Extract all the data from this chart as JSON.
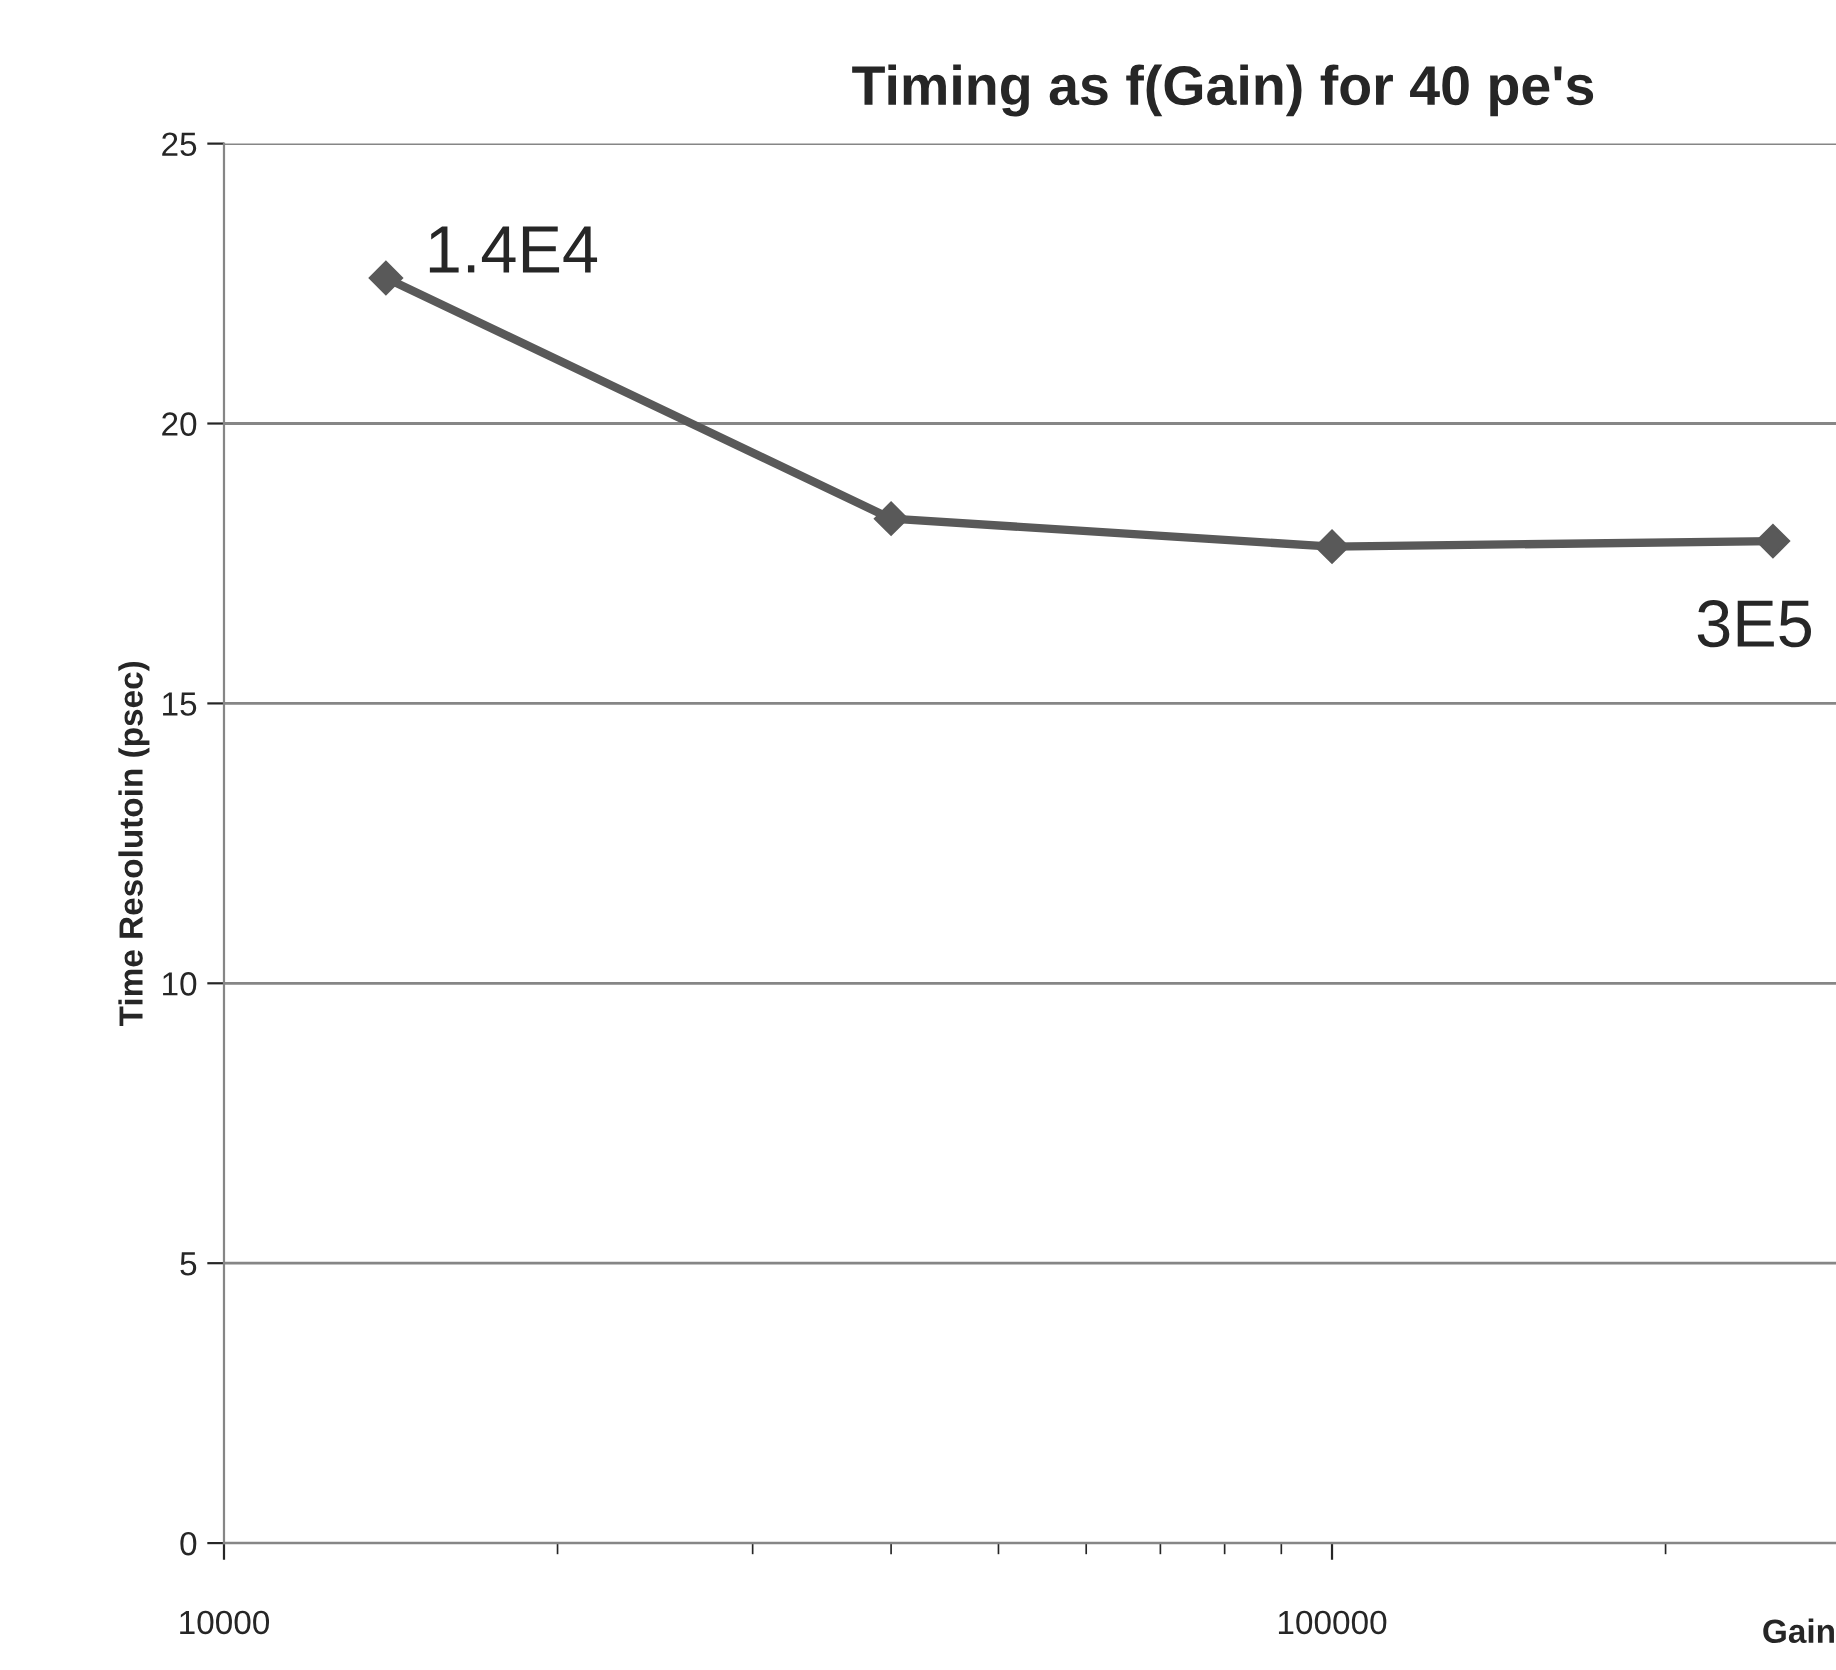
{
  "chart_data": {
    "type": "line",
    "title": "Timing as f(Gain) for 40 pe's",
    "xlabel": "Gain",
    "ylabel": "Time Resolutoin (psec)",
    "x": [
      14000,
      40000,
      100000,
      250000
    ],
    "series": [
      {
        "color": "#595959",
        "values": [
          22.6,
          18.3,
          17.8,
          17.9
        ]
      }
    ],
    "log": "x",
    "xlim": [
      10000,
      285000
    ],
    "xticks": [
      10000,
      100000
    ],
    "ylim": [
      0,
      25
    ],
    "yticks": [
      0,
      5,
      10,
      15,
      20,
      25
    ],
    "grid": "y",
    "marker": "diamond",
    "line_style": "solid",
    "annotations": [
      {
        "text": "1.4E4",
        "x": 14000,
        "y": 22.6
      },
      {
        "text": "3E5",
        "x": 250000,
        "y": 17.9
      }
    ]
  }
}
